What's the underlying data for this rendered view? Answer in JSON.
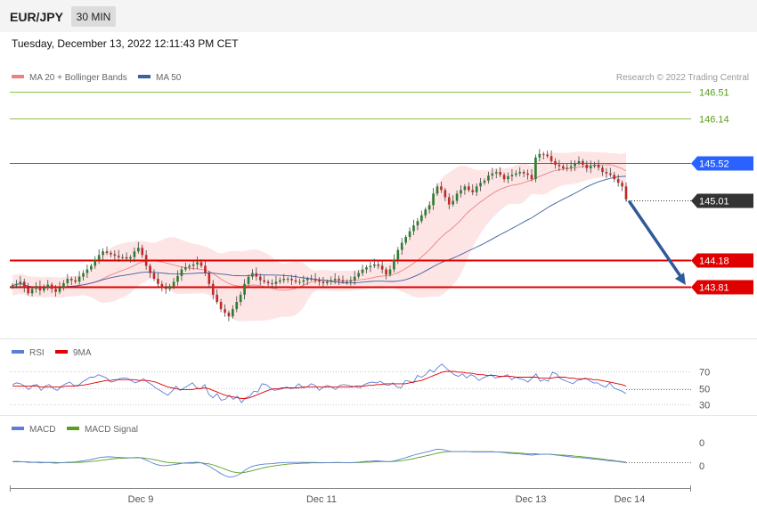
{
  "header": {
    "symbol": "EUR/JPY",
    "timeframe": "30 MIN",
    "datetime": "Tuesday, December 13, 2022 12:11:43 PM CET",
    "copyright": "Research © 2022 Trading Central"
  },
  "colors": {
    "candle_up": "#2e7d32",
    "candle_down": "#c62828",
    "ma20": "#f08080",
    "band_fill": "#fde0e0",
    "ma50": "#3f5f9f",
    "resistance": "#2962ff",
    "support": "#e00000",
    "target_lines": "#8bc34a",
    "arrow": "#2f5a9a",
    "rsi": "#5b7fd6",
    "rsi_ma": "#e00000",
    "macd": "#5b7fd6",
    "macd_signal": "#5aa020"
  },
  "chart_data": [
    {
      "type": "candlestick",
      "legend": [
        "MA 20 + Bollinger Bands",
        "MA 50"
      ],
      "x_ticks": [
        "Dec 9",
        "Dec 11",
        "Dec 13",
        "Dec 14"
      ],
      "levels": [
        {
          "value": 146.51,
          "label": "146.51",
          "kind": "target"
        },
        {
          "value": 146.14,
          "label": "146.14",
          "kind": "target"
        },
        {
          "value": 145.52,
          "label": "145.52",
          "kind": "resistance"
        },
        {
          "value": 145.01,
          "label": "145.01",
          "kind": "current"
        },
        {
          "value": 144.18,
          "label": "144.18",
          "kind": "support"
        },
        {
          "value": 143.81,
          "label": "143.81",
          "kind": "support"
        }
      ],
      "close": [
        143.83,
        143.85,
        143.88,
        143.8,
        143.72,
        143.78,
        143.82,
        143.76,
        143.8,
        143.84,
        143.78,
        143.74,
        143.8,
        143.86,
        143.92,
        143.9,
        143.88,
        143.95,
        144.0,
        144.05,
        144.1,
        144.18,
        144.25,
        144.3,
        144.28,
        144.26,
        144.24,
        144.22,
        144.22,
        144.2,
        144.22,
        144.3,
        144.35,
        144.25,
        144.1,
        144.0,
        143.92,
        143.85,
        143.8,
        143.78,
        143.82,
        143.88,
        143.96,
        144.05,
        144.08,
        144.1,
        144.12,
        144.15,
        144.1,
        144.0,
        143.85,
        143.7,
        143.6,
        143.5,
        143.45,
        143.4,
        143.5,
        143.6,
        143.7,
        143.85,
        143.95,
        144.0,
        143.95,
        143.9,
        143.88,
        143.86,
        143.85,
        143.88,
        143.9,
        143.92,
        143.92,
        143.9,
        143.88,
        143.88,
        143.9,
        143.92,
        143.92,
        143.9,
        143.88,
        143.86,
        143.88,
        143.9,
        143.92,
        143.9,
        143.88,
        143.88,
        143.9,
        143.95,
        144.0,
        144.05,
        144.08,
        144.1,
        144.12,
        144.1,
        144.05,
        143.98,
        144.05,
        144.18,
        144.32,
        144.42,
        144.5,
        144.58,
        144.66,
        144.72,
        144.8,
        144.88,
        144.94,
        145.1,
        145.2,
        145.15,
        145.05,
        144.95,
        145.0,
        145.1,
        145.15,
        145.2,
        145.15,
        145.12,
        145.2,
        145.25,
        145.28,
        145.35,
        145.38,
        145.4,
        145.36,
        145.3,
        145.34,
        145.36,
        145.38,
        145.4,
        145.38,
        145.36,
        145.3,
        145.6,
        145.65,
        145.64,
        145.62,
        145.55,
        145.5,
        145.48,
        145.45,
        145.46,
        145.48,
        145.52,
        145.55,
        145.5,
        145.45,
        145.48,
        145.5,
        145.46,
        145.4,
        145.38,
        145.36,
        145.3,
        145.25,
        145.2,
        145.02
      ]
    },
    {
      "type": "line",
      "legend": [
        "RSI",
        "9MA"
      ],
      "y_ticks": [
        70,
        50,
        30
      ],
      "series": [
        {
          "name": "RSI",
          "values": [
            54,
            56,
            55,
            52,
            48,
            53,
            54,
            47,
            52,
            54,
            49,
            47,
            52,
            55,
            57,
            53,
            52,
            57,
            60,
            63,
            63,
            66,
            64,
            62,
            57,
            58,
            61,
            62,
            62,
            59,
            56,
            58,
            61,
            57,
            54,
            50,
            47,
            44,
            41,
            46,
            52,
            47,
            50,
            53,
            56,
            50,
            49,
            54,
            42,
            38,
            43,
            35,
            36,
            41,
            36,
            40,
            32,
            38,
            40,
            46,
            45,
            55,
            54,
            50,
            47,
            48,
            49,
            51,
            49,
            50,
            55,
            50,
            51,
            55,
            53,
            47,
            51,
            53,
            51,
            48,
            53,
            54,
            53,
            52,
            51,
            50,
            54,
            56,
            57,
            56,
            58,
            54,
            53,
            56,
            51,
            50,
            59,
            58,
            56,
            65,
            63,
            66,
            72,
            69,
            75,
            79,
            74,
            70,
            66,
            64,
            67,
            62,
            66,
            64,
            59,
            62,
            64,
            66,
            62,
            63,
            64,
            66,
            60,
            63,
            61,
            60,
            57,
            62,
            67,
            58,
            60,
            58,
            69,
            67,
            61,
            59,
            57,
            55,
            59,
            60,
            62,
            59,
            56,
            56,
            53,
            51,
            56,
            50,
            48,
            46,
            43
          ]
        },
        {
          "name": "9MA",
          "values": [
            52,
            52,
            52,
            52,
            52,
            52,
            52,
            51,
            51,
            51,
            51,
            51,
            51,
            52,
            52,
            52,
            53,
            53,
            54,
            55,
            56,
            57,
            58,
            59,
            59,
            60,
            60,
            60,
            60,
            60,
            60,
            59,
            59,
            59,
            58,
            57,
            55,
            53,
            51,
            50,
            49,
            48,
            48,
            48,
            48,
            49,
            49,
            50,
            49,
            47,
            45,
            43,
            41,
            40,
            39,
            38,
            37,
            37,
            38,
            40,
            42,
            44,
            46,
            48,
            49,
            49,
            50,
            50,
            50,
            50,
            50,
            51,
            51,
            51,
            51,
            51,
            51,
            51,
            51,
            51,
            51,
            51,
            51,
            51,
            52,
            52,
            52,
            53,
            53,
            54,
            54,
            55,
            55,
            55,
            55,
            55,
            55,
            56,
            57,
            58,
            59,
            61,
            63,
            65,
            67,
            69,
            70,
            70,
            70,
            69,
            69,
            68,
            68,
            67,
            66,
            66,
            65,
            65,
            65,
            64,
            64,
            64,
            64,
            63,
            63,
            63,
            63,
            63,
            63,
            62,
            62,
            62,
            62,
            63,
            63,
            63,
            62,
            62,
            61,
            61,
            61,
            61,
            60,
            60,
            59,
            58,
            57,
            56,
            55,
            54,
            52
          ]
        }
      ]
    },
    {
      "type": "line",
      "legend": [
        "MACD",
        "MACD Signal"
      ],
      "y_ticks": [
        "0",
        "0"
      ],
      "series": [
        {
          "name": "MACD",
          "values": [
            0.06,
            0.07,
            0.06,
            0.05,
            0.03,
            0.03,
            0.03,
            0.01,
            0.02,
            0.03,
            0.01,
            0.0,
            0.01,
            0.02,
            0.04,
            0.04,
            0.05,
            0.07,
            0.09,
            0.12,
            0.15,
            0.18,
            0.22,
            0.24,
            0.25,
            0.25,
            0.24,
            0.23,
            0.22,
            0.21,
            0.21,
            0.22,
            0.23,
            0.19,
            0.12,
            0.05,
            -0.02,
            -0.07,
            -0.1,
            -0.1,
            -0.08,
            -0.06,
            -0.04,
            -0.01,
            0.01,
            0.02,
            0.03,
            0.04,
            0.01,
            -0.05,
            -0.12,
            -0.22,
            -0.32,
            -0.42,
            -0.5,
            -0.56,
            -0.55,
            -0.5,
            -0.42,
            -0.3,
            -0.2,
            -0.13,
            -0.09,
            -0.06,
            -0.04,
            -0.03,
            -0.02,
            0.0,
            0.01,
            0.02,
            0.03,
            0.03,
            0.03,
            0.03,
            0.03,
            0.03,
            0.03,
            0.03,
            0.02,
            0.02,
            0.02,
            0.02,
            0.03,
            0.03,
            0.02,
            0.02,
            0.02,
            0.03,
            0.04,
            0.06,
            0.07,
            0.08,
            0.09,
            0.09,
            0.08,
            0.06,
            0.06,
            0.09,
            0.13,
            0.18,
            0.22,
            0.27,
            0.32,
            0.36,
            0.4,
            0.44,
            0.47,
            0.52,
            0.56,
            0.55,
            0.52,
            0.48,
            0.46,
            0.46,
            0.46,
            0.47,
            0.46,
            0.45,
            0.45,
            0.45,
            0.45,
            0.45,
            0.45,
            0.45,
            0.44,
            0.42,
            0.4,
            0.39,
            0.38,
            0.37,
            0.35,
            0.34,
            0.32,
            0.34,
            0.35,
            0.36,
            0.36,
            0.35,
            0.33,
            0.31,
            0.29,
            0.27,
            0.25,
            0.23,
            0.22,
            0.21,
            0.2,
            0.18,
            0.16,
            0.15,
            0.13,
            0.11,
            0.09,
            0.08,
            0.06,
            0.04,
            0.02
          ]
        },
        {
          "name": "MACD Signal",
          "values": [
            0.05,
            0.05,
            0.05,
            0.05,
            0.05,
            0.04,
            0.04,
            0.04,
            0.03,
            0.03,
            0.03,
            0.03,
            0.02,
            0.02,
            0.02,
            0.02,
            0.03,
            0.03,
            0.04,
            0.05,
            0.07,
            0.08,
            0.1,
            0.12,
            0.14,
            0.16,
            0.18,
            0.19,
            0.2,
            0.2,
            0.21,
            0.21,
            0.21,
            0.21,
            0.19,
            0.17,
            0.14,
            0.11,
            0.07,
            0.04,
            0.02,
            0.01,
            0.0,
            0.0,
            0.0,
            0.0,
            0.0,
            0.01,
            0.01,
            -0.01,
            -0.03,
            -0.07,
            -0.12,
            -0.18,
            -0.24,
            -0.3,
            -0.35,
            -0.38,
            -0.39,
            -0.37,
            -0.34,
            -0.3,
            -0.26,
            -0.22,
            -0.18,
            -0.15,
            -0.12,
            -0.1,
            -0.08,
            -0.06,
            -0.04,
            -0.03,
            -0.02,
            -0.01,
            0.0,
            0.0,
            0.01,
            0.01,
            0.01,
            0.01,
            0.02,
            0.02,
            0.02,
            0.02,
            0.02,
            0.02,
            0.02,
            0.02,
            0.02,
            0.03,
            0.04,
            0.04,
            0.05,
            0.06,
            0.06,
            0.06,
            0.06,
            0.07,
            0.08,
            0.1,
            0.12,
            0.15,
            0.18,
            0.22,
            0.25,
            0.29,
            0.32,
            0.36,
            0.4,
            0.43,
            0.45,
            0.46,
            0.46,
            0.46,
            0.46,
            0.46,
            0.46,
            0.46,
            0.46,
            0.46,
            0.46,
            0.46,
            0.46,
            0.45,
            0.45,
            0.44,
            0.43,
            0.42,
            0.41,
            0.4,
            0.39,
            0.38,
            0.37,
            0.37,
            0.36,
            0.36,
            0.36,
            0.35,
            0.34,
            0.33,
            0.32,
            0.31,
            0.3,
            0.28,
            0.27,
            0.25,
            0.24,
            0.22,
            0.2,
            0.18,
            0.16,
            0.14,
            0.12,
            0.1,
            0.08,
            0.06,
            0.04
          ]
        }
      ]
    }
  ]
}
